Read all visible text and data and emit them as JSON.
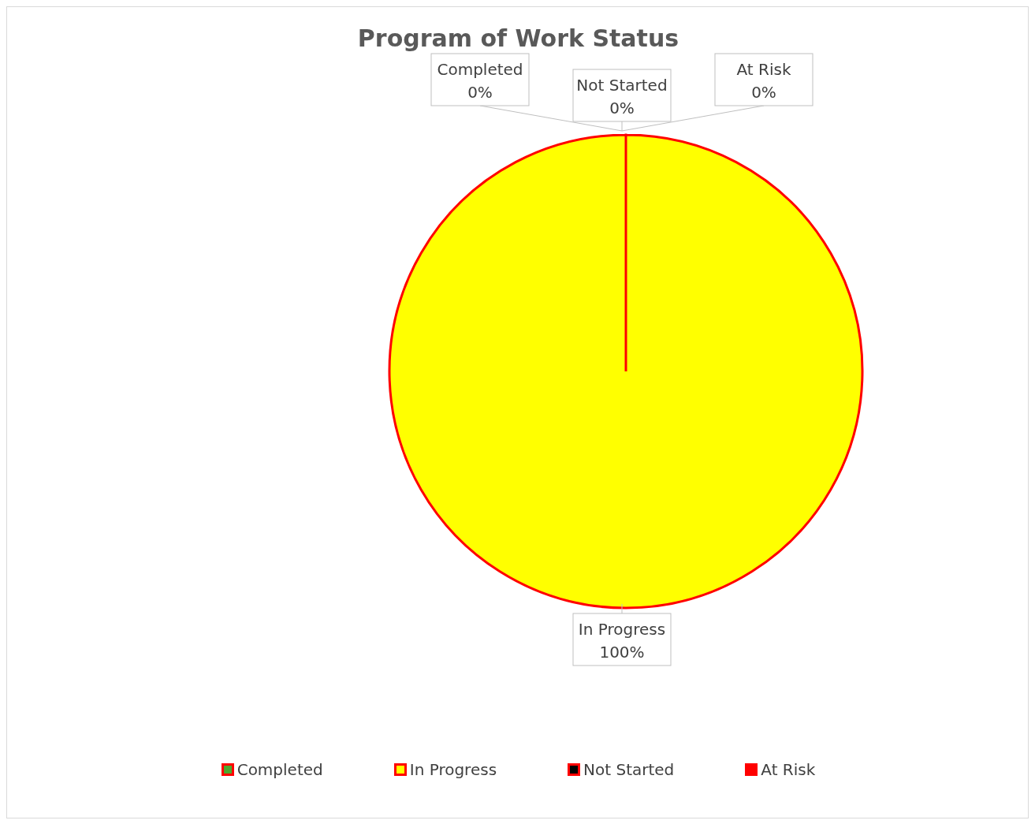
{
  "chart_data": {
    "type": "pie",
    "title": "Program of Work Status",
    "categories": [
      "Completed",
      "In Progress",
      "Not Started",
      "At Risk"
    ],
    "values": [
      0,
      100,
      0,
      0
    ],
    "value_labels": [
      "0%",
      "100%",
      "0%",
      "0%"
    ],
    "colors": [
      "#4ea72e",
      "#ffff00",
      "#000000",
      "#ff0000"
    ],
    "legend": "bottom"
  }
}
